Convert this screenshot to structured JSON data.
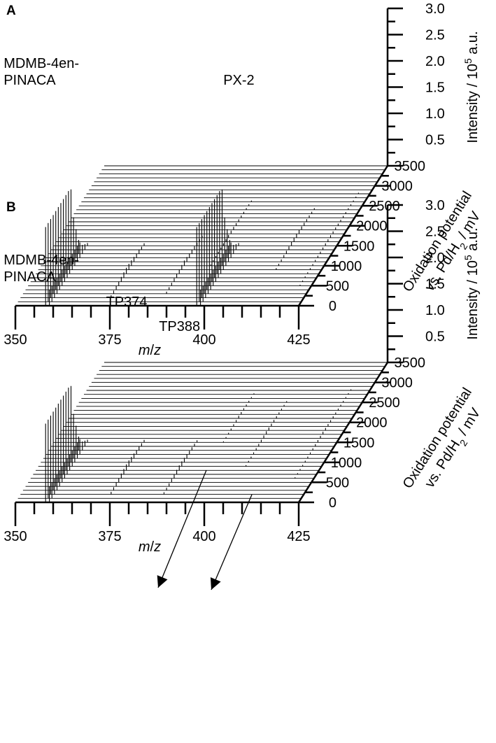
{
  "chart_data": [
    {
      "type": "waterfall",
      "panel_label": "A",
      "x_axis": {
        "label": "m/z",
        "ticks": [
          350,
          375,
          400,
          425
        ],
        "range": [
          350,
          425
        ]
      },
      "depth_axis": {
        "label_line1": "Oxidation potential",
        "label_line2": "vs. Pd/H2 / mV",
        "ticks": [
          0,
          500,
          1000,
          1500,
          2000,
          2500,
          3000,
          3500
        ],
        "range": [
          0,
          3500
        ],
        "step": 100
      },
      "z_axis": {
        "label": "Intensity / 10^5 a.u.",
        "ticks": [
          0.5,
          1.0,
          1.5,
          2.0,
          2.5,
          3.0
        ],
        "range": [
          0,
          3.0
        ]
      },
      "annotations": [
        {
          "text_lines": [
            "MDMB-4en-",
            "PINACA"
          ],
          "mz": 358
        },
        {
          "text_lines": [
            "PX-2"
          ],
          "mz": 398
        }
      ],
      "series": [
        {
          "mz": 358,
          "peak_intensity": 1.5,
          "onset_mV": 0,
          "end_mV": 1400,
          "fade": false
        },
        {
          "mz": 359,
          "peak_intensity": 0.3,
          "onset_mV": 0,
          "end_mV": 1600,
          "fade": false
        },
        {
          "mz": 398,
          "peak_intensity": 1.5,
          "onset_mV": 0,
          "end_mV": 1400,
          "fade": false
        },
        {
          "mz": 399,
          "peak_intensity": 0.3,
          "onset_mV": 0,
          "end_mV": 1600,
          "fade": false
        },
        {
          "mz": 374,
          "peak_intensity": 0.12,
          "onset_mV": 200,
          "end_mV": 1500,
          "fade": true
        },
        {
          "mz": 388,
          "peak_intensity": 0.1,
          "onset_mV": 300,
          "end_mV": 1700,
          "fade": true
        },
        {
          "mz": 395,
          "peak_intensity": 0.06,
          "onset_mV": 1000,
          "end_mV": 2600,
          "fade": true
        },
        {
          "mz": 413,
          "peak_intensity": 0.08,
          "onset_mV": 900,
          "end_mV": 2400,
          "fade": true
        },
        {
          "mz": 422,
          "peak_intensity": 0.05,
          "onset_mV": 500,
          "end_mV": 2800,
          "fade": true
        }
      ]
    },
    {
      "type": "waterfall",
      "panel_label": "B",
      "x_axis": {
        "label": "m/z",
        "ticks": [
          350,
          375,
          400,
          425
        ],
        "range": [
          350,
          425
        ]
      },
      "depth_axis": {
        "label_line1": "Oxidation potential",
        "label_line2": "vs. Pd/H2 / mV",
        "ticks": [
          0,
          500,
          1000,
          1500,
          2000,
          2500,
          3000,
          3500
        ],
        "range": [
          0,
          3500
        ],
        "step": 100
      },
      "z_axis": {
        "label": "Intensity / 10^5 a.u.",
        "ticks": [
          0.5,
          1.0,
          1.5,
          2.0,
          2.5,
          3.0
        ],
        "range": [
          0,
          3.0
        ]
      },
      "annotations": [
        {
          "text_lines": [
            "MDMB-4en-",
            "PINACA"
          ],
          "mz": 358
        },
        {
          "text_lines": [
            "TP374"
          ],
          "mz": 374,
          "arrow": true
        },
        {
          "text_lines": [
            "TP388"
          ],
          "mz": 388,
          "arrow": true
        }
      ],
      "series": [
        {
          "mz": 358,
          "peak_intensity": 1.5,
          "onset_mV": 0,
          "end_mV": 1400,
          "fade": false
        },
        {
          "mz": 359,
          "peak_intensity": 0.3,
          "onset_mV": 0,
          "end_mV": 1600,
          "fade": false
        },
        {
          "mz": 374,
          "peak_intensity": 0.12,
          "onset_mV": 200,
          "end_mV": 1500,
          "fade": true
        },
        {
          "mz": 388,
          "peak_intensity": 0.1,
          "onset_mV": 200,
          "end_mV": 1500,
          "fade": true
        },
        {
          "mz": 395,
          "peak_intensity": 0.05,
          "onset_mV": 1500,
          "end_mV": 2700,
          "fade": true
        },
        {
          "mz": 405,
          "peak_intensity": 0.06,
          "onset_mV": 900,
          "end_mV": 2500,
          "fade": true
        },
        {
          "mz": 420,
          "peak_intensity": 0.05,
          "onset_mV": 600,
          "end_mV": 2800,
          "fade": true
        }
      ]
    }
  ]
}
